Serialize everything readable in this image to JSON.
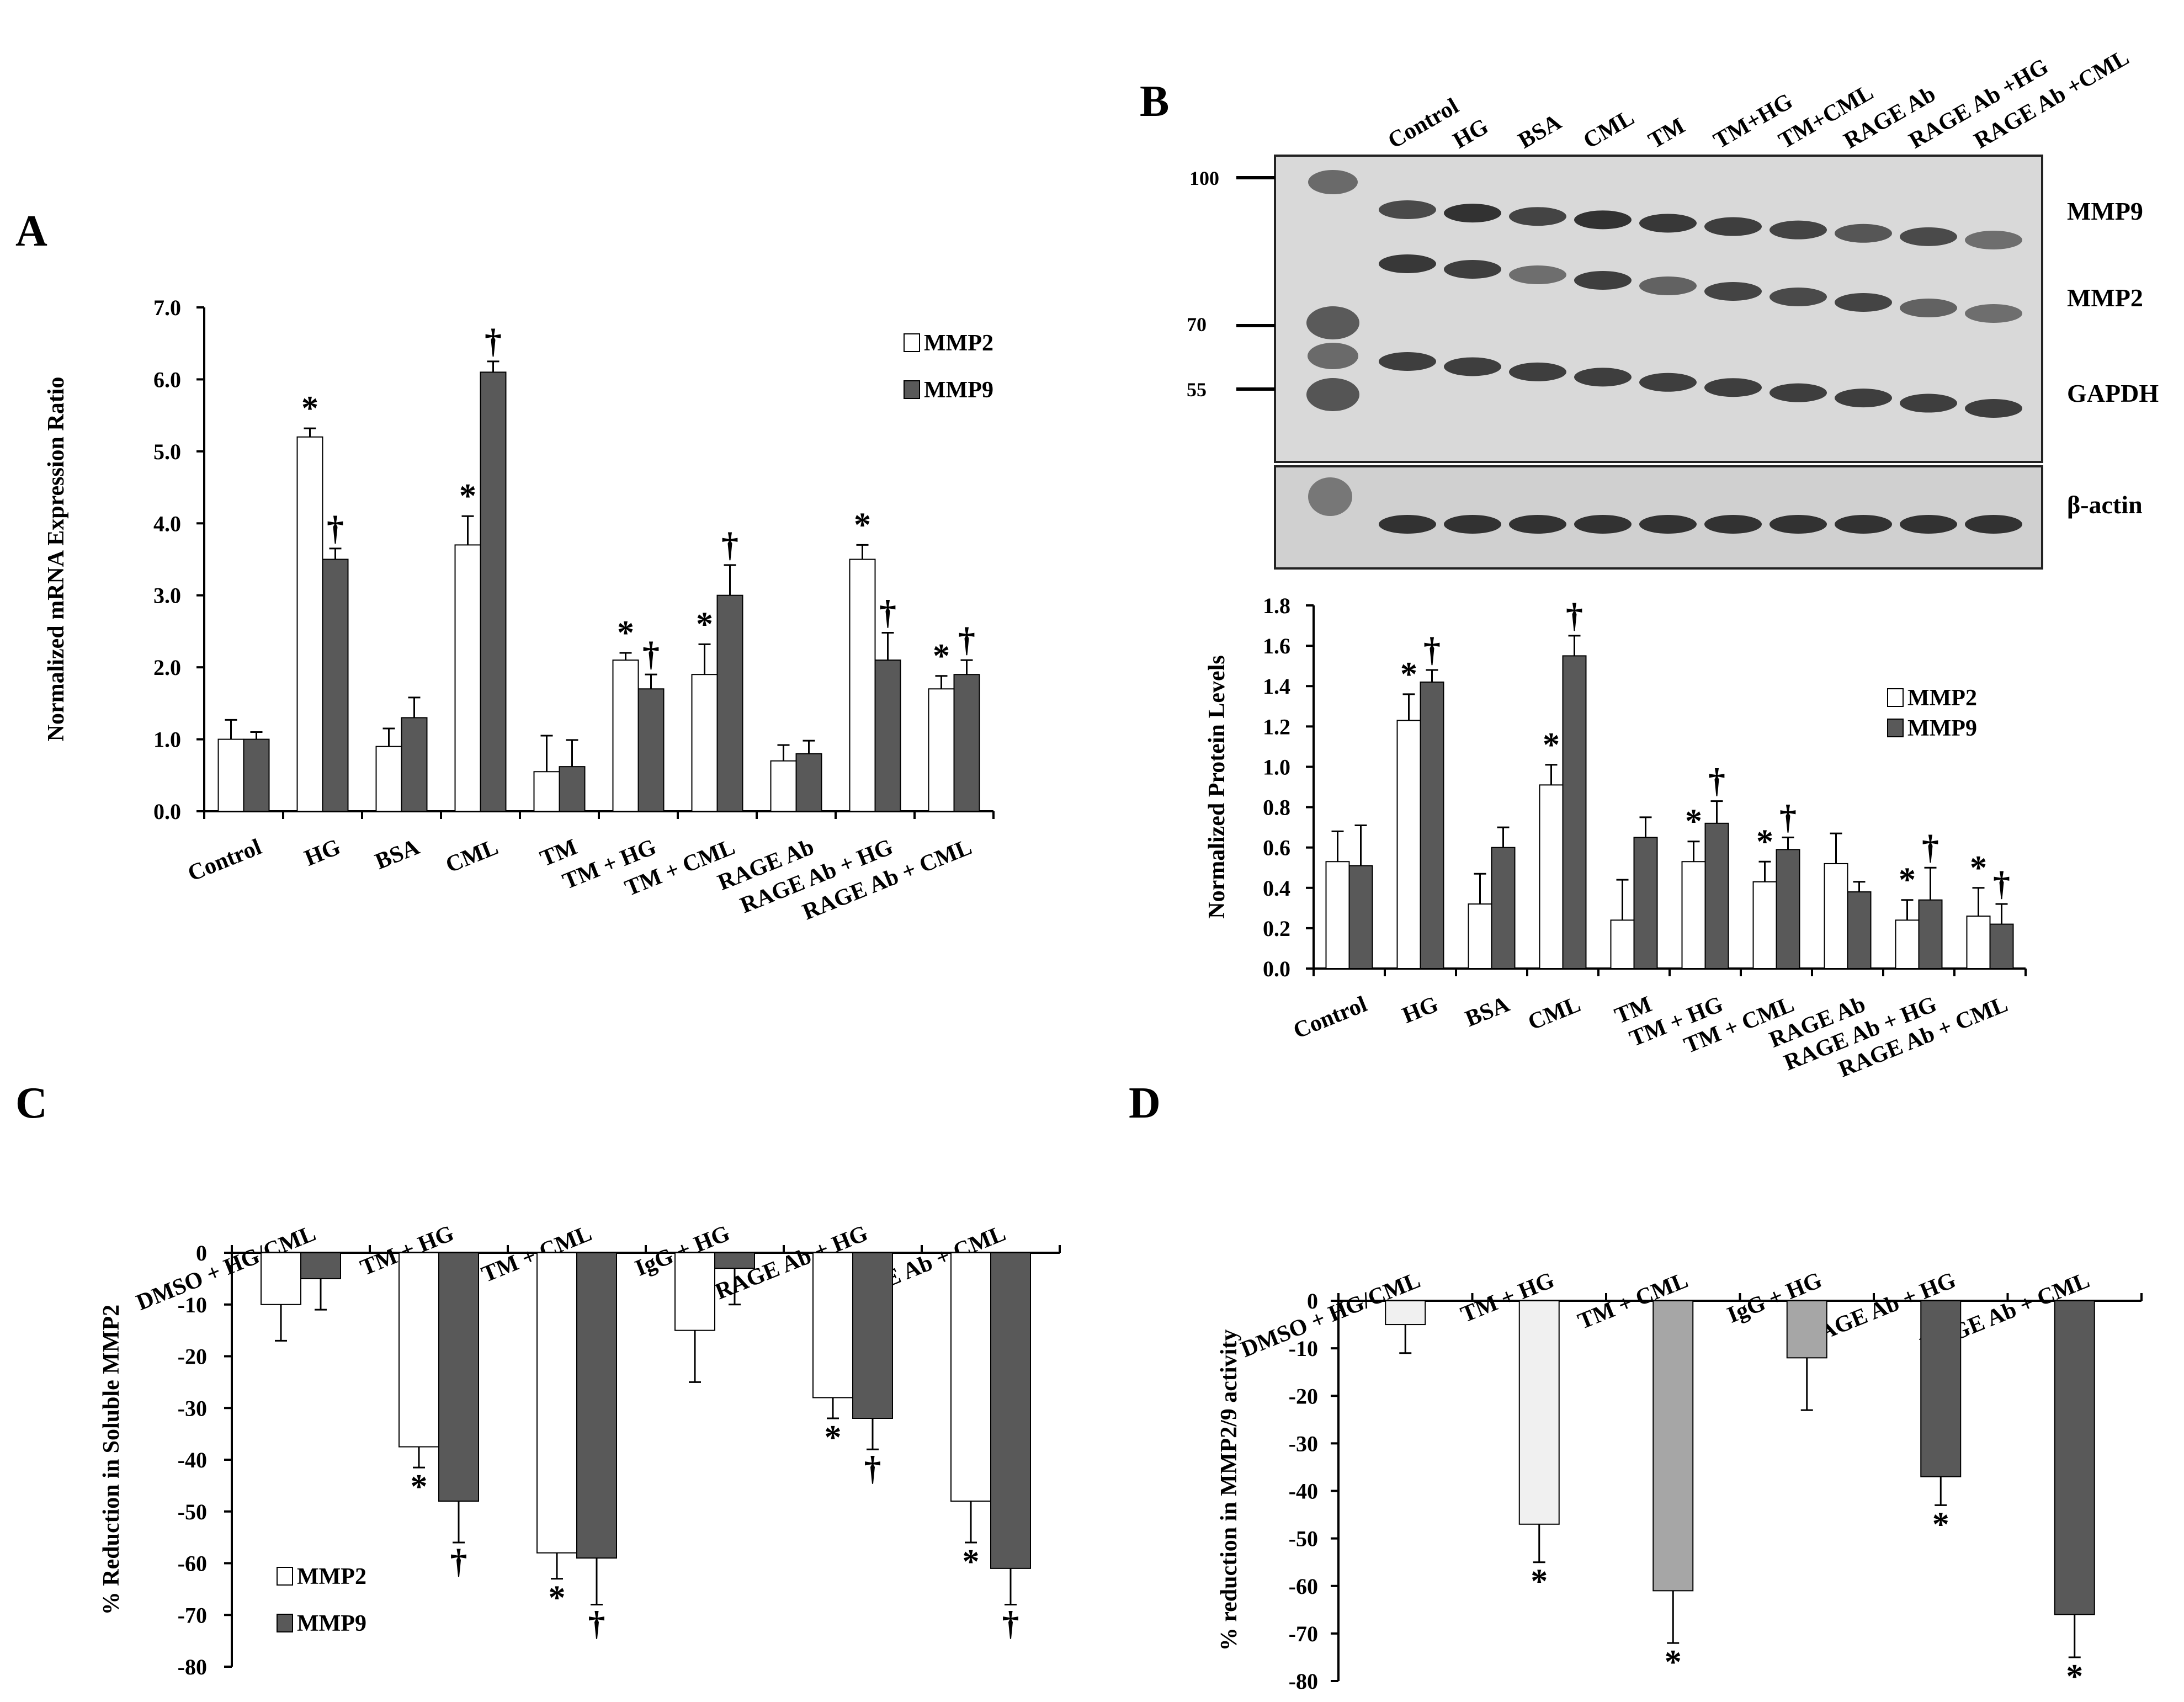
{
  "colors": {
    "mmp2": "#ffffff",
    "mmp9": "#595959",
    "axis": "#000000",
    "d_light": "#f0f0f0",
    "d_mid": "#a6a6a6",
    "d_dark": "#595959"
  },
  "panels": {
    "A": {
      "letter": "A"
    },
    "B": {
      "letter": "B"
    },
    "C": {
      "letter": "C"
    },
    "D": {
      "letter": "D"
    }
  },
  "blot": {
    "lanes": [
      "Control",
      "HG",
      "BSA",
      "CML",
      "TM",
      "TM+HG",
      "TM+CML",
      "RAGE Ab",
      "RAGE Ab +HG",
      "RAGE Ab +CML"
    ],
    "markers": [
      "100",
      "70",
      "55"
    ],
    "bands": [
      "MMP9",
      "MMP2",
      "GAPDH",
      "β-actin"
    ]
  },
  "chart_data": [
    {
      "id": "A",
      "type": "bar",
      "title": "",
      "categories": [
        "Control",
        "HG",
        "BSA",
        "CML",
        "TM",
        "TM + HG",
        "TM + CML",
        "RAGE Ab",
        "RAGE Ab + HG",
        "RAGE Ab + CML"
      ],
      "series": [
        {
          "name": "MMP2",
          "values": [
            1.0,
            5.2,
            0.9,
            3.7,
            0.55,
            2.1,
            1.9,
            0.7,
            3.5,
            1.7
          ],
          "errors": [
            0.27,
            0.12,
            0.25,
            0.4,
            0.5,
            0.1,
            0.42,
            0.22,
            0.2,
            0.18
          ],
          "marks": [
            "",
            "*",
            "",
            "*",
            "",
            "*",
            "*",
            "",
            "*",
            "*"
          ]
        },
        {
          "name": "MMP9",
          "values": [
            1.0,
            3.5,
            1.3,
            6.1,
            0.62,
            1.7,
            3.0,
            0.8,
            2.1,
            1.9
          ],
          "errors": [
            0.1,
            0.15,
            0.28,
            0.15,
            0.37,
            0.2,
            0.42,
            0.18,
            0.38,
            0.2
          ],
          "marks": [
            "",
            "†",
            "",
            "†",
            "",
            "†",
            "†",
            "",
            "†",
            "†"
          ]
        }
      ],
      "xlabel": "",
      "ylabel": "Normalized mRNA Expression Ratio",
      "ylim": [
        0,
        7
      ],
      "yticks": [
        "0.0",
        "1.0",
        "2.0",
        "3.0",
        "4.0",
        "5.0",
        "6.0",
        "7.0"
      ],
      "legend": [
        "MMP2",
        "MMP9"
      ],
      "legend_position": "top-right",
      "grid": false
    },
    {
      "id": "B",
      "type": "bar",
      "title": "",
      "categories": [
        "Control",
        "HG",
        "BSA",
        "CML",
        "TM",
        "TM + HG",
        "TM + CML",
        "RAGE Ab",
        "RAGE Ab + HG",
        "RAGE Ab + CML"
      ],
      "series": [
        {
          "name": "MMP2",
          "values": [
            0.53,
            1.23,
            0.32,
            0.91,
            0.24,
            0.53,
            0.43,
            0.52,
            0.24,
            0.26
          ],
          "errors": [
            0.15,
            0.13,
            0.15,
            0.1,
            0.2,
            0.1,
            0.1,
            0.15,
            0.1,
            0.14
          ],
          "marks": [
            "",
            "*",
            "",
            "*",
            "",
            "*",
            "*",
            "",
            "*",
            "*"
          ]
        },
        {
          "name": "MMP9",
          "values": [
            0.51,
            1.42,
            0.6,
            1.55,
            0.65,
            0.72,
            0.59,
            0.38,
            0.34,
            0.22
          ],
          "errors": [
            0.2,
            0.06,
            0.1,
            0.1,
            0.1,
            0.11,
            0.06,
            0.05,
            0.16,
            0.1
          ],
          "marks": [
            "",
            "†",
            "",
            "†",
            "",
            "†",
            "†",
            "",
            "†",
            "†"
          ]
        }
      ],
      "xlabel": "",
      "ylabel": "Normalized Protein Levels",
      "ylim": [
        0,
        1.8
      ],
      "yticks": [
        "0.0",
        "0.2",
        "0.4",
        "0.6",
        "0.8",
        "1.0",
        "1.2",
        "1.4",
        "1.6",
        "1.8"
      ],
      "legend": [
        "MMP2",
        "MMP9"
      ],
      "legend_position": "top-right",
      "grid": false
    },
    {
      "id": "C",
      "type": "bar",
      "title": "",
      "categories": [
        "DMSO + HG/CML",
        "TM + HG",
        "TM + CML",
        "IgG + HG",
        "RAGE Ab + HG",
        "RAGE Ab + CML"
      ],
      "series": [
        {
          "name": "MMP2",
          "values": [
            -10,
            -37.5,
            -58,
            -15,
            -28,
            -48
          ],
          "errors": [
            7,
            4,
            5,
            10,
            4,
            8
          ],
          "marks": [
            "",
            "*",
            "*",
            "",
            "*",
            "*"
          ]
        },
        {
          "name": "MMP9",
          "values": [
            -5,
            -48,
            -59,
            -3,
            -32,
            -61
          ],
          "errors": [
            6,
            8,
            9,
            7,
            6,
            7
          ],
          "marks": [
            "",
            "†",
            "†",
            "",
            "†",
            "†"
          ]
        }
      ],
      "xlabel": "",
      "ylabel": "% Reduction in Soluble MMP2",
      "ylim": [
        -80,
        0
      ],
      "yticks": [
        "-80",
        "-70",
        "-60",
        "-50",
        "-40",
        "-30",
        "-20",
        "-10",
        "0"
      ],
      "legend": [
        "MMP2",
        "MMP9"
      ],
      "legend_position": "bottom-left",
      "grid": false
    },
    {
      "id": "D",
      "type": "bar",
      "title": "",
      "categories": [
        "DMSO + HG/CML",
        "TM + HG",
        "TM + CML",
        "IgG + HG",
        "RAGE Ab + HG",
        "RAGE Ab + CML"
      ],
      "series": [
        {
          "name": "activity",
          "values": [
            -5,
            -47,
            -61,
            -12,
            -37,
            -66
          ],
          "errors": [
            6,
            8,
            11,
            11,
            6,
            9
          ],
          "marks": [
            "",
            "*",
            "*",
            "",
            "*",
            "*"
          ],
          "fills": [
            "d_light",
            "d_light",
            "d_mid",
            "d_mid",
            "d_dark",
            "d_dark"
          ]
        }
      ],
      "xlabel": "",
      "ylabel": "% reduction in MMP2/9 activity",
      "ylim": [
        -80,
        0
      ],
      "yticks": [
        "-80",
        "-70",
        "-60",
        "-50",
        "-40",
        "-30",
        "-20",
        "-10",
        "0"
      ],
      "legend": [],
      "grid": false
    }
  ]
}
